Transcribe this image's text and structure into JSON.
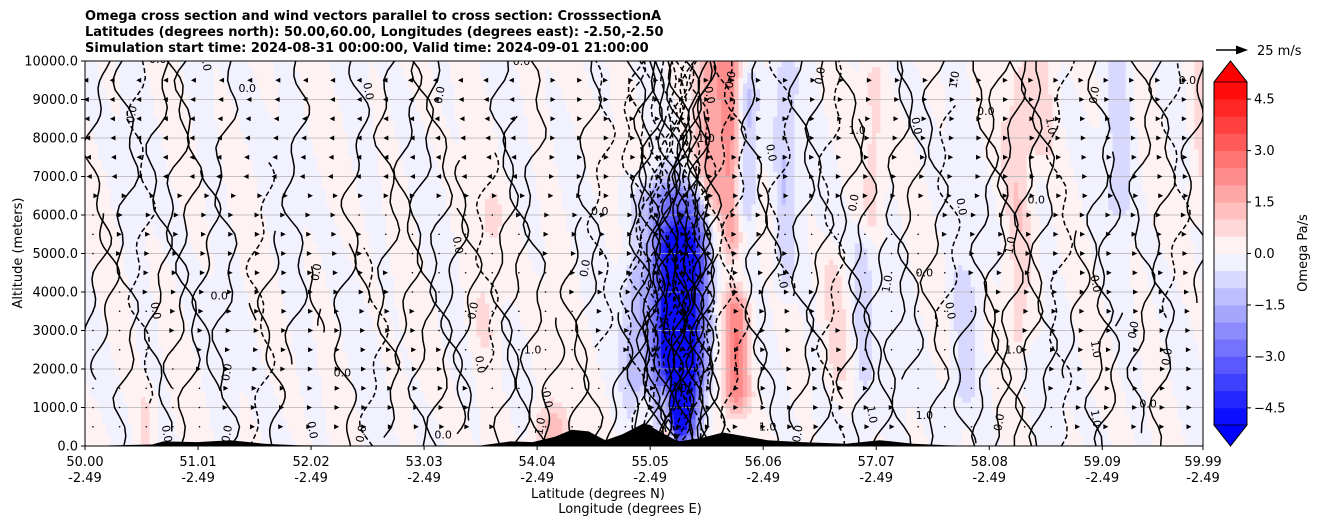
{
  "chart_data": {
    "type": "contour",
    "title_lines": [
      "Omega cross section and wind vectors parallel to cross section: CrosssectionA",
      "Latitudes (degrees north): 50.00,60.00, Longitudes (degrees east): -2.50,-2.50",
      "Simulation start time: 2024-08-31 00:00:00, Valid time: 2024-09-01 21:00:00"
    ],
    "xlabel_lines": [
      "Latitude (degrees N)",
      "Longitude (degrees E)"
    ],
    "ylabel": "Altitude (meters)",
    "ylim": [
      0,
      10000
    ],
    "xlim": [
      50.0,
      59.99
    ],
    "x_ticks": [
      {
        "lat": "50.00",
        "lon": "-2.49",
        "v": 50.0
      },
      {
        "lat": "51.01",
        "lon": "-2.49",
        "v": 51.01
      },
      {
        "lat": "52.02",
        "lon": "-2.49",
        "v": 52.02
      },
      {
        "lat": "53.03",
        "lon": "-2.49",
        "v": 53.03
      },
      {
        "lat": "54.04",
        "lon": "-2.49",
        "v": 54.04
      },
      {
        "lat": "55.05",
        "lon": "-2.49",
        "v": 55.05
      },
      {
        "lat": "56.06",
        "lon": "-2.49",
        "v": 56.06
      },
      {
        "lat": "57.07",
        "lon": "-2.49",
        "v": 57.07
      },
      {
        "lat": "58.08",
        "lon": "-2.49",
        "v": 58.08
      },
      {
        "lat": "59.09",
        "lon": "-2.49",
        "v": 59.09
      },
      {
        "lat": "59.99",
        "lon": "-2.49",
        "v": 59.99
      }
    ],
    "y_ticks": [
      {
        "label": "0.0",
        "v": 0
      },
      {
        "label": "1000.0",
        "v": 1000
      },
      {
        "label": "2000.0",
        "v": 2000
      },
      {
        "label": "3000.0",
        "v": 3000
      },
      {
        "label": "4000.0",
        "v": 4000
      },
      {
        "label": "5000.0",
        "v": 5000
      },
      {
        "label": "6000.0",
        "v": 6000
      },
      {
        "label": "7000.0",
        "v": 7000
      },
      {
        "label": "8000.0",
        "v": 8000
      },
      {
        "label": "9000.0",
        "v": 9000
      },
      {
        "label": "10000.0",
        "v": 10000
      }
    ],
    "grid": "horizontal",
    "colorbar": {
      "label": "Omega Pa/s",
      "range": [
        -5.0,
        5.0
      ],
      "step": 0.5,
      "ticks": [
        {
          "label": "4.5",
          "v": 4.5
        },
        {
          "label": "3.0",
          "v": 3.0
        },
        {
          "label": "1.5",
          "v": 1.5
        },
        {
          "label": "0.0",
          "v": 0.0
        },
        {
          "label": "−1.5",
          "v": -1.5
        },
        {
          "label": "−3.0",
          "v": -3.0
        },
        {
          "label": "−4.5",
          "v": -4.5
        }
      ],
      "max_color": "#ff0000",
      "min_color": "#0000ff",
      "extend": "both"
    },
    "quiver_key": {
      "label": "25 m/s",
      "speed": 25
    },
    "contour_lines": [
      {
        "level": 0.0,
        "style": "solid"
      },
      {
        "level": 1.0,
        "style": "solid"
      },
      {
        "level": -1.0,
        "style": "dashed"
      }
    ],
    "contour_labels": [
      {
        "text": "0.0",
        "x": 50.65,
        "y": 9950
      },
      {
        "text": "0.0",
        "x": 51.05,
        "y": 9950
      },
      {
        "text": "0.0",
        "x": 50.45,
        "y": 8600
      },
      {
        "text": "0.0",
        "x": 51.45,
        "y": 9200
      },
      {
        "text": "0.0",
        "x": 52.5,
        "y": 9200
      },
      {
        "text": "0.0",
        "x": 53.2,
        "y": 9100
      },
      {
        "text": "0.0",
        "x": 53.9,
        "y": 9900
      },
      {
        "text": "0.0",
        "x": 55.55,
        "y": 9100
      },
      {
        "text": "0.0",
        "x": 55.8,
        "y": 9500
      },
      {
        "text": "1.0",
        "x": 55.55,
        "y": 7900
      },
      {
        "text": "0.0",
        "x": 56.1,
        "y": 7600
      },
      {
        "text": "0.0",
        "x": 56.6,
        "y": 9600
      },
      {
        "text": "1.0",
        "x": 56.9,
        "y": 8100
      },
      {
        "text": "0.0",
        "x": 57.4,
        "y": 8300
      },
      {
        "text": "1.0",
        "x": 57.8,
        "y": 9500
      },
      {
        "text": "0.0",
        "x": 58.05,
        "y": 8600
      },
      {
        "text": "1.0",
        "x": 58.6,
        "y": 8300
      },
      {
        "text": "0.0",
        "x": 59.05,
        "y": 9100
      },
      {
        "text": "0.0",
        "x": 59.85,
        "y": 9400
      },
      {
        "text": "0.0",
        "x": 53.3,
        "y": 5200
      },
      {
        "text": "0.0",
        "x": 54.5,
        "y": 4600
      },
      {
        "text": "0.0",
        "x": 55.1,
        "y": 4100
      },
      {
        "text": "0.0",
        "x": 55.15,
        "y": 3100
      },
      {
        "text": "0.0",
        "x": 52.1,
        "y": 4500
      },
      {
        "text": "0.0",
        "x": 51.2,
        "y": 3800
      },
      {
        "text": "0.0",
        "x": 50.6,
        "y": 3500
      },
      {
        "text": "0.0",
        "x": 53.5,
        "y": 3500
      },
      {
        "text": "1.0",
        "x": 54.0,
        "y": 2400
      },
      {
        "text": "0.0",
        "x": 53.5,
        "y": 2100
      },
      {
        "text": "0.0",
        "x": 51.3,
        "y": 1900
      },
      {
        "text": "0.0",
        "x": 52.3,
        "y": 1800
      },
      {
        "text": "0.0",
        "x": 54.1,
        "y": 1200
      },
      {
        "text": "1.0",
        "x": 54.1,
        "y": 500
      },
      {
        "text": "0.0",
        "x": 55.3,
        "y": 1400
      },
      {
        "text": "1.0",
        "x": 56.2,
        "y": 4300
      },
      {
        "text": "1.0",
        "x": 57.2,
        "y": 4200
      },
      {
        "text": "0.0",
        "x": 57.5,
        "y": 4400
      },
      {
        "text": "0.0",
        "x": 57.7,
        "y": 3500
      },
      {
        "text": "1.0",
        "x": 58.3,
        "y": 5200
      },
      {
        "text": "0.0",
        "x": 58.5,
        "y": 6300
      },
      {
        "text": "0.0",
        "x": 59.0,
        "y": 4200
      },
      {
        "text": "0.0",
        "x": 59.4,
        "y": 3000
      },
      {
        "text": "1.0",
        "x": 58.3,
        "y": 2400
      },
      {
        "text": "1.0",
        "x": 59.0,
        "y": 2500
      },
      {
        "text": "0.0",
        "x": 59.7,
        "y": 2300
      },
      {
        "text": "0.0",
        "x": 59.5,
        "y": 1000
      },
      {
        "text": "1.0",
        "x": 59.0,
        "y": 700
      },
      {
        "text": "0.0",
        "x": 58.2,
        "y": 600
      },
      {
        "text": "1.0",
        "x": 57.5,
        "y": 700
      },
      {
        "text": "1.0",
        "x": 57.0,
        "y": 800
      },
      {
        "text": "0.0",
        "x": 56.4,
        "y": 300
      },
      {
        "text": "1.0",
        "x": 56.1,
        "y": 400
      },
      {
        "text": "0.0",
        "x": 52.0,
        "y": 400
      },
      {
        "text": "0.0",
        "x": 52.5,
        "y": 300
      },
      {
        "text": "0.0",
        "x": 53.2,
        "y": 200
      },
      {
        "text": "0.0",
        "x": 50.7,
        "y": 300
      },
      {
        "text": "0.0",
        "x": 51.3,
        "y": 300
      },
      {
        "text": "0.0",
        "x": 54.6,
        "y": 6000
      },
      {
        "text": "0.0",
        "x": 57.8,
        "y": 6200
      },
      {
        "text": "0.0",
        "x": 56.9,
        "y": 6300
      }
    ],
    "omega_features": [
      {
        "lat": 55.3,
        "z0": 1000,
        "z1": 5000,
        "value": -5.0,
        "w": 0.14
      },
      {
        "lat": 55.22,
        "z0": 700,
        "z1": 6300,
        "value": -2.5,
        "w": 0.28
      },
      {
        "lat": 55.48,
        "z0": 2000,
        "z1": 6000,
        "value": -1.8,
        "w": 0.12
      },
      {
        "lat": 55.82,
        "z0": 1500,
        "z1": 3500,
        "value": 2.5,
        "w": 0.12
      },
      {
        "lat": 55.78,
        "z0": 5500,
        "z1": 10000,
        "value": 2.0,
        "w": 0.1
      },
      {
        "lat": 55.6,
        "z0": 6500,
        "z1": 9800,
        "value": 1.8,
        "w": 0.14
      },
      {
        "lat": 55.2,
        "z0": 0,
        "z1": 1200,
        "value": 4.0,
        "w": 0.06
      },
      {
        "lat": 55.9,
        "z0": 6500,
        "z1": 9000,
        "value": -1.5,
        "w": 0.1
      },
      {
        "lat": 56.25,
        "z0": 4500,
        "z1": 9500,
        "value": -1.0,
        "w": 0.1
      },
      {
        "lat": 56.95,
        "z0": 500,
        "z1": 5000,
        "value": -0.8,
        "w": 0.1
      },
      {
        "lat": 57.05,
        "z0": 6000,
        "z1": 9500,
        "value": 0.7,
        "w": 0.1
      },
      {
        "lat": 57.85,
        "z0": 1500,
        "z1": 4000,
        "value": -0.8,
        "w": 0.12
      },
      {
        "lat": 58.35,
        "z0": 3000,
        "z1": 9500,
        "value": 0.8,
        "w": 0.12
      },
      {
        "lat": 59.25,
        "z0": 6500,
        "z1": 10000,
        "value": -0.8,
        "w": 0.12
      },
      {
        "lat": 58.55,
        "z0": 8000,
        "z1": 10000,
        "value": 0.8,
        "w": 0.12
      },
      {
        "lat": 59.95,
        "z0": 6500,
        "z1": 10000,
        "value": 0.6,
        "w": 0.1
      },
      {
        "lat": 54.9,
        "z0": 2000,
        "z1": 4000,
        "value": -0.8,
        "w": 0.1
      },
      {
        "lat": 55.05,
        "z0": 0,
        "z1": 800,
        "value": 1.5,
        "w": 0.12
      },
      {
        "lat": 54.15,
        "z0": 0,
        "z1": 400,
        "value": 1.2,
        "w": 0.2
      },
      {
        "lat": 50.55,
        "z0": 0,
        "z1": 1000,
        "value": 0.6,
        "w": 0.1
      },
      {
        "lat": 56.7,
        "z0": 2000,
        "z1": 4500,
        "value": 0.6,
        "w": 0.12
      },
      {
        "lat": 53.6,
        "z0": 3000,
        "z1": 6000,
        "value": 0.5,
        "w": 0.15
      }
    ],
    "terrain": [
      {
        "x": 50.0,
        "h": 0
      },
      {
        "x": 50.6,
        "h": 40
      },
      {
        "x": 50.7,
        "h": 120
      },
      {
        "x": 51.0,
        "h": 100
      },
      {
        "x": 51.3,
        "h": 150
      },
      {
        "x": 51.6,
        "h": 60
      },
      {
        "x": 51.9,
        "h": 20
      },
      {
        "x": 52.3,
        "h": 10
      },
      {
        "x": 53.1,
        "h": 0
      },
      {
        "x": 53.5,
        "h": 0
      },
      {
        "x": 53.8,
        "h": 120
      },
      {
        "x": 54.0,
        "h": 100
      },
      {
        "x": 54.2,
        "h": 240
      },
      {
        "x": 54.35,
        "h": 420
      },
      {
        "x": 54.5,
        "h": 380
      },
      {
        "x": 54.65,
        "h": 150
      },
      {
        "x": 54.8,
        "h": 300
      },
      {
        "x": 55.0,
        "h": 600
      },
      {
        "x": 55.15,
        "h": 350
      },
      {
        "x": 55.3,
        "h": 120
      },
      {
        "x": 55.5,
        "h": 200
      },
      {
        "x": 55.7,
        "h": 350
      },
      {
        "x": 55.9,
        "h": 250
      },
      {
        "x": 56.1,
        "h": 150
      },
      {
        "x": 56.4,
        "h": 100
      },
      {
        "x": 56.8,
        "h": 60
      },
      {
        "x": 57.1,
        "h": 150
      },
      {
        "x": 57.4,
        "h": 60
      },
      {
        "x": 57.7,
        "h": 20
      },
      {
        "x": 58.0,
        "h": 0
      },
      {
        "x": 59.99,
        "h": 0
      }
    ]
  }
}
